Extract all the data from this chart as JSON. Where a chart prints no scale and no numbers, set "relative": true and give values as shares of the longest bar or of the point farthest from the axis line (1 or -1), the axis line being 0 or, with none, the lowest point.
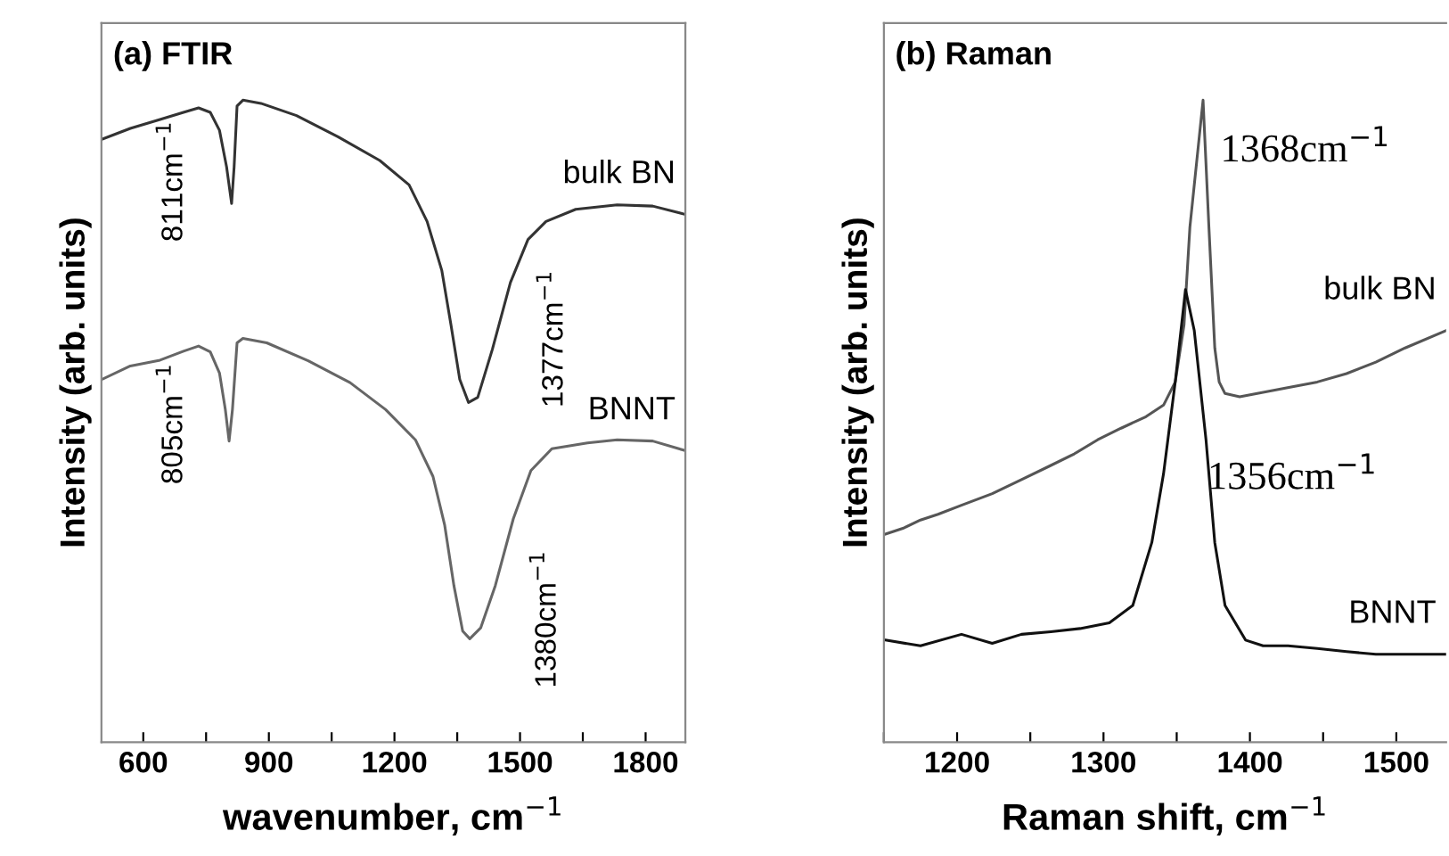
{
  "chart_data": [
    {
      "type": "line",
      "title": "(a) FTIR",
      "xlabel": "wavenumber, cm$^{−1}$",
      "ylabel": "Intensity (arb. units)",
      "relative": true,
      "grid": false,
      "legend": false,
      "xlim": [
        500,
        1895
      ],
      "xticks": [
        600,
        {
          "value": 750,
          "label": null
        },
        900,
        {
          "value": 1050,
          "label": null
        },
        1200,
        {
          "value": 1350,
          "label": null
        },
        1500,
        {
          "value": 1650,
          "label": null
        },
        1800
      ],
      "series": [
        {
          "name": "bulk BN",
          "color": "#333333",
          "x": [
            501,
            569,
            640,
            696,
            732,
            760,
            782,
            799,
            811,
            817,
            824,
            838,
            881,
            966,
            1065,
            1165,
            1235,
            1278,
            1313,
            1335,
            1356,
            1377,
            1399,
            1434,
            1477,
            1519,
            1562,
            1633,
            1732,
            1817,
            1895
          ],
          "values": [
            0.939,
            0.956,
            0.97,
            0.981,
            0.988,
            0.981,
            0.953,
            0.896,
            0.839,
            0.896,
            0.991,
            1.0,
            0.995,
            0.976,
            0.943,
            0.906,
            0.868,
            0.811,
            0.735,
            0.65,
            0.565,
            0.529,
            0.537,
            0.612,
            0.716,
            0.783,
            0.811,
            0.83,
            0.837,
            0.835,
            0.822
          ]
        },
        {
          "name": "BNNT",
          "color": "#666666",
          "x": [
            501,
            569,
            640,
            696,
            732,
            760,
            782,
            796,
            805,
            813,
            824,
            838,
            895,
            994,
            1094,
            1179,
            1250,
            1292,
            1320,
            1342,
            1363,
            1380,
            1406,
            1441,
            1484,
            1526,
            1576,
            1661,
            1732,
            1817,
            1895
          ],
          "values": [
            0.565,
            0.586,
            0.595,
            0.609,
            0.617,
            0.608,
            0.575,
            0.518,
            0.469,
            0.518,
            0.622,
            0.629,
            0.622,
            0.594,
            0.56,
            0.518,
            0.471,
            0.414,
            0.338,
            0.244,
            0.173,
            0.161,
            0.178,
            0.244,
            0.348,
            0.423,
            0.457,
            0.466,
            0.471,
            0.469,
            0.454
          ]
        }
      ],
      "annotations": [
        {
          "text": "811cm$^{−1}$",
          "x": 811,
          "y": 0.839
        },
        "1377cm$^{−1}$",
        {
          "text": "805cm$^{−1}$",
          "x": 805,
          "y": 0.469
        },
        "1380cm$^{−1}$"
      ]
    },
    {
      "type": "line",
      "title": "(b) Raman",
      "xlabel": "Raman shift, cm$^{−1}$",
      "ylabel": "Intensity (arb. units)",
      "relative": true,
      "grid": false,
      "legend": false,
      "xlim": [
        1150,
        1534
      ],
      "xticks": [
        {
          "value": 1150,
          "label": null
        },
        1200,
        {
          "value": 1250,
          "label": null
        },
        1300,
        {
          "value": 1350,
          "label": null
        },
        1400,
        {
          "value": 1450,
          "label": null
        },
        1500
      ],
      "series": [
        {
          "name": "bulk BN",
          "color": "#555555",
          "x": [
            1151,
            1163,
            1175,
            1187,
            1203,
            1224,
            1244,
            1264,
            1280,
            1296,
            1312,
            1329,
            1341,
            1349,
            1355,
            1359,
            1368,
            1372,
            1376,
            1379,
            1383,
            1393,
            1405,
            1425,
            1446,
            1466,
            1486,
            1506,
            1534
          ],
          "values": [
            0.324,
            0.333,
            0.346,
            0.355,
            0.369,
            0.387,
            0.409,
            0.431,
            0.449,
            0.471,
            0.489,
            0.507,
            0.525,
            0.561,
            0.65,
            0.802,
            1.0,
            0.802,
            0.614,
            0.561,
            0.543,
            0.538,
            0.543,
            0.552,
            0.561,
            0.574,
            0.592,
            0.614,
            0.641
          ]
        },
        {
          "name": "BNNT",
          "color": "#111111",
          "x": [
            1151,
            1175,
            1203,
            1224,
            1244,
            1264,
            1284,
            1304,
            1320,
            1333,
            1341,
            1349,
            1356,
            1362,
            1370,
            1376,
            1383,
            1397,
            1409,
            1426,
            1446,
            1466,
            1486,
            1506,
            1534
          ],
          "values": [
            0.159,
            0.15,
            0.168,
            0.154,
            0.168,
            0.172,
            0.177,
            0.186,
            0.213,
            0.311,
            0.418,
            0.561,
            0.705,
            0.641,
            0.471,
            0.311,
            0.213,
            0.159,
            0.15,
            0.15,
            0.146,
            0.141,
            0.137,
            0.137,
            0.137
          ]
        }
      ],
      "annotations": [
        {
          "text": "1368cm$^{−1}$",
          "x": 1368,
          "y": 1.0
        },
        {
          "text": "1356cm$^{−1}$",
          "x": 1371,
          "y": 0.409
        }
      ]
    }
  ]
}
